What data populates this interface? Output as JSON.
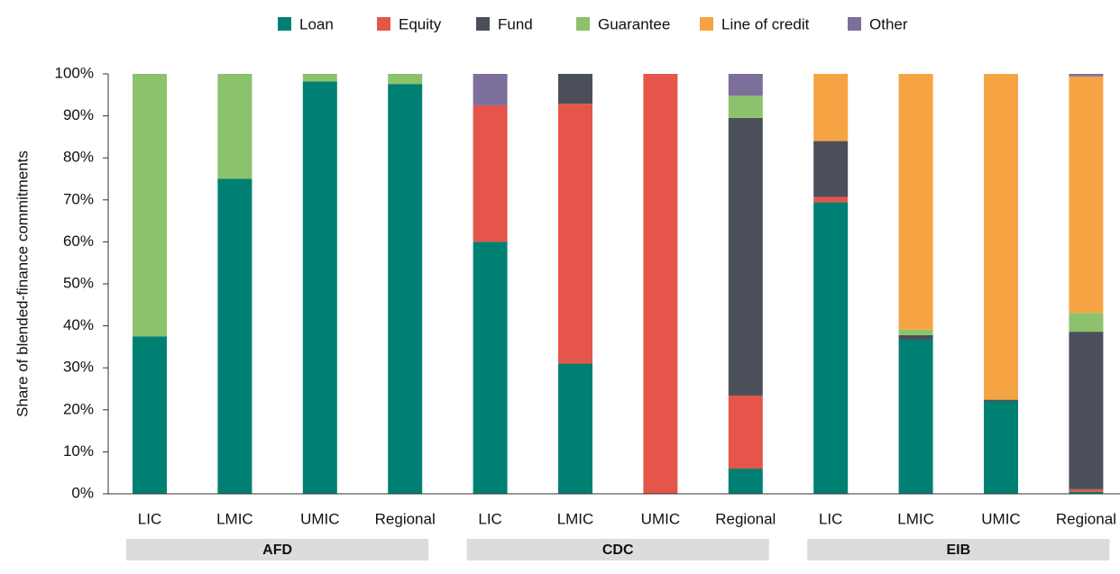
{
  "chart_data": {
    "type": "stacked_bar",
    "y_axis_label": "Share of blended-finance commitments",
    "categories": [
      "LIC",
      "LMIC",
      "UMIC",
      "Regional",
      "LIC",
      "LMIC",
      "UMIC",
      "Regional",
      "LIC",
      "LMIC",
      "UMIC",
      "Regional"
    ],
    "group_labels": [
      "AFD",
      "CDC",
      "EIB"
    ],
    "series": [
      {
        "name": "Loan",
        "color": "#008072",
        "values": [
          37.5,
          75,
          98.2,
          97.6,
          60,
          31,
          0,
          6,
          69.4,
          36.7,
          22,
          0.5
        ]
      },
      {
        "name": "Equity",
        "color": "#e5554a",
        "values": [
          0,
          0,
          0,
          0,
          32.5,
          61.9,
          100,
          17.4,
          1.3,
          0,
          0,
          0.6
        ]
      },
      {
        "name": "Fund",
        "color": "#4b4f59",
        "values": [
          0,
          0,
          0,
          0,
          0,
          7.1,
          0,
          66.1,
          13.3,
          1.1,
          0.4,
          37.5
        ]
      },
      {
        "name": "Guarantee",
        "color": "#8dc26c",
        "values": [
          62.5,
          25,
          1.8,
          2.4,
          0,
          0,
          0,
          5.3,
          0,
          1.3,
          0,
          4.5
        ]
      },
      {
        "name": "Line of credit",
        "color": "#f6a443",
        "values": [
          0,
          0,
          0,
          0,
          0,
          0,
          0,
          0,
          16,
          60.9,
          77.6,
          56.3
        ]
      },
      {
        "name": "Other",
        "color": "#7d6f9b",
        "values": [
          0,
          0,
          0,
          0,
          7.5,
          0,
          0,
          5.2,
          0,
          0,
          0,
          0.6
        ]
      }
    ],
    "ylim": [
      0,
      100
    ],
    "yticks": [
      {
        "value": 0,
        "label": "0%"
      },
      {
        "value": 10,
        "label": "10%"
      },
      {
        "value": 20,
        "label": "20%"
      },
      {
        "value": 30,
        "label": "30%"
      },
      {
        "value": 40,
        "label": "40%"
      },
      {
        "value": 50,
        "label": "50%"
      },
      {
        "value": 60,
        "label": "60%"
      },
      {
        "value": 70,
        "label": "70%"
      },
      {
        "value": 80,
        "label": "80%"
      },
      {
        "value": 90,
        "label": "90%"
      },
      {
        "value": 100,
        "label": "100%"
      }
    ],
    "legend": "top"
  }
}
